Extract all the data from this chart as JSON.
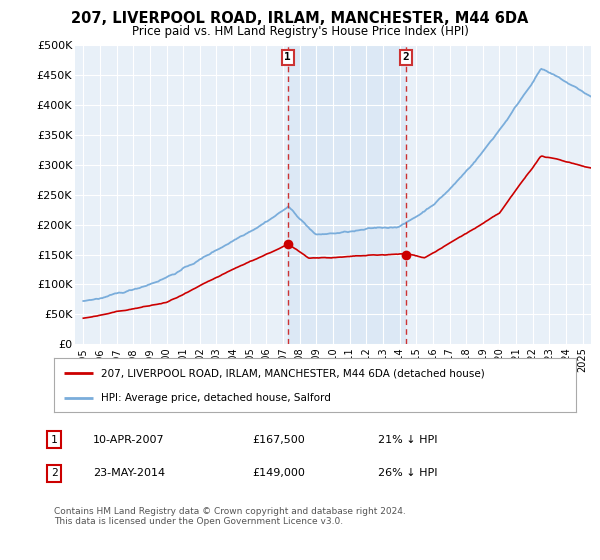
{
  "title": "207, LIVERPOOL ROAD, IRLAM, MANCHESTER, M44 6DA",
  "subtitle": "Price paid vs. HM Land Registry's House Price Index (HPI)",
  "legend_line1": "207, LIVERPOOL ROAD, IRLAM, MANCHESTER, M44 6DA (detached house)",
  "legend_line2": "HPI: Average price, detached house, Salford",
  "footer": "Contains HM Land Registry data © Crown copyright and database right 2024.\nThis data is licensed under the Open Government Licence v3.0.",
  "transaction1_date": "10-APR-2007",
  "transaction1_price": "£167,500",
  "transaction1_hpi": "21% ↓ HPI",
  "transaction1_year": 2007.28,
  "transaction1_value": 167500,
  "transaction2_date": "23-MAY-2014",
  "transaction2_price": "£149,000",
  "transaction2_hpi": "26% ↓ HPI",
  "transaction2_year": 2014.39,
  "transaction2_value": 149000,
  "red_color": "#cc0000",
  "blue_color": "#7aaddb",
  "shade_color": "#dce8f5",
  "background_color": "#ffffff",
  "plot_bg_color": "#e8f0f8",
  "grid_color": "#ffffff",
  "ylim": [
    0,
    500000
  ],
  "yticks": [
    0,
    50000,
    100000,
    150000,
    200000,
    250000,
    300000,
    350000,
    400000,
    450000,
    500000
  ],
  "ytick_labels": [
    "£0",
    "£50K",
    "£100K",
    "£150K",
    "£200K",
    "£250K",
    "£300K",
    "£350K",
    "£400K",
    "£450K",
    "£500K"
  ],
  "xlim_start": 1994.5,
  "xlim_end": 2025.5
}
